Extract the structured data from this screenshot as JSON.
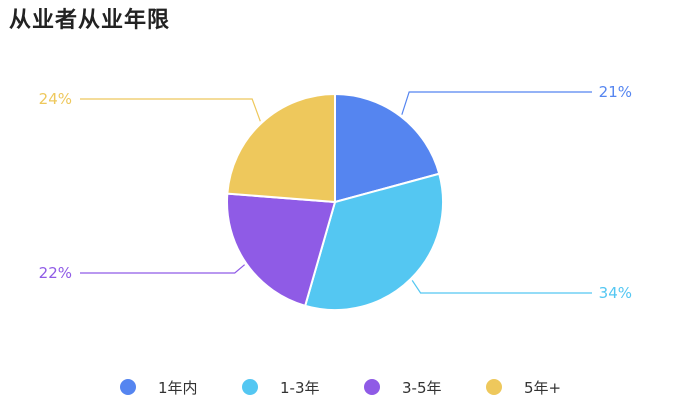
{
  "title": "从业者从业年限",
  "chart_data": {
    "type": "pie",
    "categories": [
      "1年内",
      "1-3年",
      "3-5年",
      "5年+"
    ],
    "values": [
      21,
      34,
      22,
      24
    ],
    "labels": [
      "21%",
      "34%",
      "22%",
      "24%"
    ],
    "colors": [
      "#5585F0",
      "#54C7F2",
      "#8F5BE6",
      "#EEC85C"
    ],
    "legend_position": "bottom"
  }
}
